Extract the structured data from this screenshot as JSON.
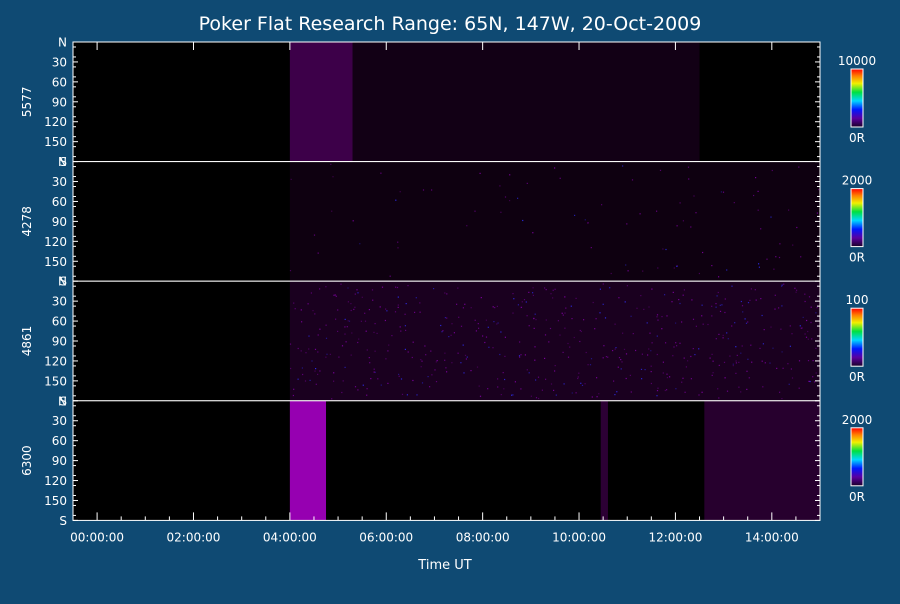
{
  "title": "Poker Flat Research Range: 65N, 147W, 20-Oct-2009",
  "colors": {
    "background": "#0f4a73",
    "panel": "#000000",
    "axis": "#ffffff",
    "emission": "#b000d0"
  },
  "chart_data": {
    "type": "heatmap",
    "title": "Poker Flat Research Range: 65N, 147W, 20-Oct-2009",
    "xlabel": "Time UT",
    "x_ticks": [
      "00:00:00",
      "02:00:00",
      "04:00:00",
      "06:00:00",
      "08:00:00",
      "10:00:00",
      "12:00:00",
      "14:00:00"
    ],
    "xlim_hours": [
      -0.5,
      15
    ],
    "y_ticks": [
      "N",
      "30",
      "60",
      "90",
      "120",
      "150",
      "S"
    ],
    "ylim_deg": [
      0,
      180
    ],
    "panels": [
      {
        "label": "5577",
        "colorbar_max": "10000",
        "colorbar_min": "0R",
        "features": [
          {
            "start_hour": 4.0,
            "end_hour": 5.3,
            "intensity": 0.35
          },
          {
            "start_hour": 5.3,
            "end_hour": 12.5,
            "intensity": 0.1
          }
        ],
        "noise": 0
      },
      {
        "label": "4278",
        "colorbar_max": "2000",
        "colorbar_min": "0R",
        "features": [
          {
            "start_hour": 4.0,
            "end_hour": 15.0,
            "intensity": 0.08
          }
        ],
        "noise": 0.1
      },
      {
        "label": "4861",
        "colorbar_max": "100",
        "colorbar_min": "0R",
        "features": [
          {
            "start_hour": 4.0,
            "end_hour": 15.0,
            "intensity": 0.15
          }
        ],
        "noise": 0.6
      },
      {
        "label": "6300",
        "colorbar_max": "2000",
        "colorbar_min": "0R",
        "features": [
          {
            "start_hour": 4.0,
            "end_hour": 4.75,
            "intensity": 0.85
          },
          {
            "start_hour": 10.45,
            "end_hour": 10.6,
            "intensity": 0.25
          },
          {
            "start_hour": 12.6,
            "end_hour": 15.0,
            "intensity": 0.22
          }
        ],
        "noise": 0
      }
    ]
  }
}
